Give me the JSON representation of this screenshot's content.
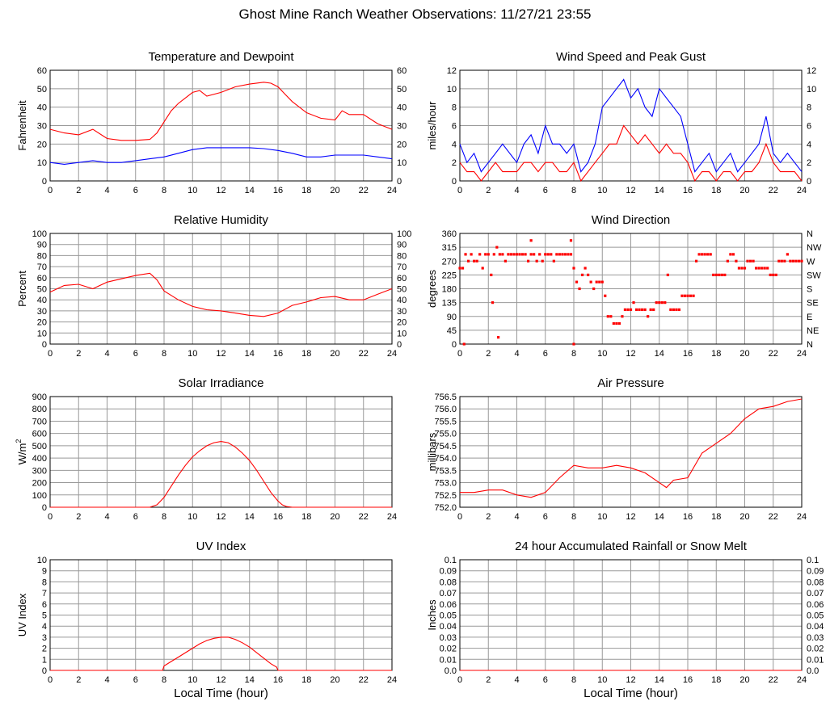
{
  "title": "Ghost Mine Ranch Weather Observations: 11/27/21 23:55",
  "colors": {
    "red": "#ff0000",
    "blue": "#0000ff",
    "grid": "#999999",
    "frame": "#000000"
  },
  "chart_data": [
    {
      "id": "temp",
      "type": "line",
      "title": "Temperature and Dewpoint",
      "ylabel": "Fahrenheit",
      "xlabel": "",
      "xlim": [
        0,
        24
      ],
      "ylim": [
        0,
        60
      ],
      "xticks": [
        "0",
        "2",
        "4",
        "6",
        "8",
        "10",
        "12",
        "14",
        "16",
        "18",
        "20",
        "22",
        "24"
      ],
      "yticks": [
        "0",
        "10",
        "20",
        "30",
        "40",
        "50",
        "60"
      ],
      "right_yticks": [
        "0",
        "10",
        "20",
        "30",
        "40",
        "50",
        "60"
      ],
      "grid": true,
      "series": [
        {
          "color": "red",
          "x": [
            0,
            1,
            2,
            3,
            4,
            5,
            6,
            7,
            7.5,
            8,
            8.5,
            9,
            9.5,
            10,
            10.5,
            11,
            12,
            13,
            14,
            15,
            15.5,
            16,
            16.5,
            17,
            18,
            19,
            20,
            20.5,
            21,
            22,
            23,
            24
          ],
          "y": [
            28,
            26,
            25,
            28,
            23,
            22,
            22,
            22.5,
            26,
            32,
            38,
            42,
            45,
            48,
            49,
            46,
            48,
            51,
            52.5,
            53.5,
            53,
            51,
            47,
            43,
            37,
            34,
            33,
            38,
            36,
            36,
            31,
            28
          ]
        },
        {
          "color": "blue",
          "x": [
            0,
            1,
            2,
            3,
            4,
            5,
            6,
            7,
            8,
            9,
            10,
            11,
            12,
            13,
            14,
            15,
            16,
            17,
            18,
            19,
            20,
            21,
            22,
            23,
            24
          ],
          "y": [
            10,
            9,
            10,
            11,
            10,
            10,
            11,
            12,
            13,
            15,
            17,
            18,
            18,
            18,
            18,
            17.5,
            16.5,
            15,
            13,
            13,
            14,
            14,
            14,
            13,
            12
          ]
        }
      ]
    },
    {
      "id": "wind",
      "type": "line",
      "title": "Wind Speed and Peak Gust",
      "ylabel": "miles/hour",
      "xlabel": "",
      "xlim": [
        0,
        24
      ],
      "ylim": [
        0,
        12
      ],
      "xticks": [
        "0",
        "2",
        "4",
        "6",
        "8",
        "10",
        "12",
        "14",
        "16",
        "18",
        "20",
        "22",
        "24"
      ],
      "yticks": [
        "0",
        "2",
        "4",
        "6",
        "8",
        "10",
        "12"
      ],
      "right_yticks": [
        "0",
        "2",
        "4",
        "6",
        "8",
        "10",
        "12"
      ],
      "grid": true,
      "series": [
        {
          "color": "blue",
          "x": [
            0,
            0.5,
            1,
            1.5,
            2,
            2.5,
            3,
            3.5,
            4,
            4.5,
            5,
            5.5,
            6,
            6.5,
            7,
            7.5,
            8,
            8.5,
            9,
            9.5,
            10,
            10.5,
            11,
            11.5,
            12,
            12.5,
            13,
            13.5,
            14,
            14.5,
            15,
            15.5,
            16,
            16.5,
            17,
            17.5,
            18,
            18.5,
            19,
            19.5,
            20,
            20.5,
            21,
            21.5,
            22,
            22.5,
            23,
            23.5,
            24
          ],
          "y": [
            4,
            2,
            3,
            1,
            2,
            3,
            4,
            3,
            2,
            4,
            5,
            3,
            6,
            4,
            4,
            3,
            4,
            1,
            2,
            4,
            8,
            9,
            10,
            11,
            9,
            10,
            8,
            7,
            10,
            9,
            8,
            7,
            4,
            1,
            2,
            3,
            1,
            2,
            3,
            1,
            2,
            3,
            4,
            7,
            3,
            2,
            3,
            2,
            1
          ]
        },
        {
          "color": "red",
          "x": [
            0,
            0.5,
            1,
            1.5,
            2,
            2.5,
            3,
            3.5,
            4,
            4.5,
            5,
            5.5,
            6,
            6.5,
            7,
            7.5,
            8,
            8.5,
            9,
            9.5,
            10,
            10.5,
            11,
            11.5,
            12,
            12.5,
            13,
            13.5,
            14,
            14.5,
            15,
            15.5,
            16,
            16.5,
            17,
            17.5,
            18,
            18.5,
            19,
            19.5,
            20,
            20.5,
            21,
            21.5,
            22,
            22.5,
            23,
            23.5,
            24
          ],
          "y": [
            2,
            1,
            1,
            0,
            1,
            2,
            1,
            1,
            1,
            2,
            2,
            1,
            2,
            2,
            1,
            1,
            2,
            0,
            1,
            2,
            3,
            4,
            4,
            6,
            5,
            4,
            5,
            4,
            3,
            4,
            3,
            3,
            2,
            0,
            1,
            1,
            0,
            1,
            1,
            0,
            1,
            1,
            2,
            4,
            2,
            1,
            1,
            1,
            0
          ]
        }
      ]
    },
    {
      "id": "rh",
      "type": "line",
      "title": "Relative Humidity",
      "ylabel": "Percent",
      "xlabel": "",
      "xlim": [
        0,
        24
      ],
      "ylim": [
        0,
        100
      ],
      "xticks": [
        "0",
        "2",
        "4",
        "6",
        "8",
        "10",
        "12",
        "14",
        "16",
        "18",
        "20",
        "22",
        "24"
      ],
      "yticks": [
        "0",
        "10",
        "20",
        "30",
        "40",
        "50",
        "60",
        "70",
        "80",
        "90",
        "100"
      ],
      "right_yticks": [
        "0",
        "10",
        "20",
        "30",
        "40",
        "50",
        "60",
        "70",
        "80",
        "90",
        "100"
      ],
      "grid": true,
      "series": [
        {
          "color": "red",
          "x": [
            0,
            1,
            2,
            3,
            4,
            5,
            6,
            7,
            7.5,
            8,
            9,
            10,
            11,
            12,
            13,
            14,
            15,
            16,
            17,
            18,
            19,
            20,
            21,
            22,
            23,
            24
          ],
          "y": [
            47,
            53,
            54,
            50,
            56,
            59,
            62,
            64,
            58,
            48,
            40,
            34,
            31,
            30,
            28,
            26,
            25,
            28,
            35,
            38,
            42,
            43,
            40,
            40,
            45,
            50
          ]
        }
      ]
    },
    {
      "id": "dir",
      "type": "scatter",
      "title": "Wind Direction",
      "ylabel": "degrees",
      "xlabel": "",
      "xlim": [
        0,
        24
      ],
      "ylim": [
        0,
        360
      ],
      "xticks": [
        "0",
        "2",
        "4",
        "6",
        "8",
        "10",
        "12",
        "14",
        "16",
        "18",
        "20",
        "22",
        "24"
      ],
      "yticks": [
        "0",
        "45",
        "90",
        "135",
        "180",
        "225",
        "270",
        "315",
        "360"
      ],
      "right_yticks": [
        "N",
        "NE",
        "E",
        "SE",
        "S",
        "SW",
        "W",
        "NW",
        "N"
      ],
      "grid": true,
      "series": [
        {
          "color": "red",
          "x": [
            0,
            0.2,
            0.4,
            0.6,
            0.8,
            1,
            1.2,
            1.4,
            1.6,
            1.8,
            2,
            2.2,
            2.4,
            2.6,
            2.8,
            3,
            3.2,
            3.4,
            3.6,
            3.8,
            4,
            4.2,
            4.4,
            4.6,
            4.8,
            5,
            5.2,
            5.4,
            5.6,
            5.8,
            6,
            6.2,
            6.4,
            6.6,
            6.8,
            7,
            7.2,
            7.4,
            7.6,
            7.8,
            8,
            8.2,
            8.4,
            8.6,
            8.8,
            9,
            9.2,
            9.4,
            9.6,
            9.8,
            10,
            10.2,
            10.4,
            10.6,
            10.8,
            11,
            11.2,
            11.4,
            11.6,
            11.8,
            12,
            12.2,
            12.4,
            12.6,
            12.8,
            13,
            13.2,
            13.4,
            13.6,
            13.8,
            14,
            14.2,
            14.4,
            14.6,
            14.8,
            15,
            15.2,
            15.4,
            15.6,
            15.8,
            16,
            16.2,
            16.4,
            16.6,
            16.8,
            17,
            17.2,
            17.4,
            17.6,
            17.8,
            18,
            18.2,
            18.4,
            18.6,
            18.8,
            19,
            19.2,
            19.4,
            19.6,
            19.8,
            20,
            20.2,
            20.4,
            20.6,
            20.8,
            21,
            21.2,
            21.4,
            21.6,
            21.8,
            22,
            22.2,
            22.4,
            22.6,
            22.8,
            23,
            23.2,
            23.4,
            23.6,
            23.8,
            24,
            0.3,
            2.7,
            8,
            2.3,
            5,
            7.8
          ],
          "y": [
            247,
            247,
            292,
            270,
            292,
            270,
            270,
            292,
            247,
            292,
            292,
            225,
            292,
            315,
            292,
            292,
            270,
            292,
            292,
            292,
            292,
            292,
            292,
            292,
            270,
            292,
            292,
            270,
            292,
            270,
            292,
            292,
            292,
            270,
            292,
            292,
            292,
            292,
            292,
            292,
            247,
            202,
            180,
            225,
            247,
            225,
            202,
            180,
            202,
            202,
            202,
            157,
            90,
            90,
            67,
            67,
            67,
            90,
            112,
            112,
            112,
            135,
            112,
            112,
            112,
            112,
            90,
            112,
            112,
            135,
            135,
            135,
            135,
            225,
            112,
            112,
            112,
            112,
            157,
            157,
            157,
            157,
            157,
            270,
            292,
            292,
            292,
            292,
            292,
            225,
            225,
            225,
            225,
            225,
            270,
            292,
            292,
            270,
            247,
            247,
            247,
            270,
            270,
            270,
            247,
            247,
            247,
            247,
            247,
            225,
            225,
            225,
            270,
            270,
            270,
            292,
            270,
            270,
            270,
            270,
            270,
            0,
            22,
            0,
            135,
            337,
            337
          ]
        }
      ]
    },
    {
      "id": "solar",
      "type": "line",
      "title": "Solar Irradiance",
      "ylabel": "W/m",
      "ylabel_sup": "2",
      "xlabel": "",
      "xlim": [
        0,
        24
      ],
      "ylim": [
        0,
        900
      ],
      "xticks": [
        "0",
        "2",
        "4",
        "6",
        "8",
        "10",
        "12",
        "14",
        "16",
        "18",
        "20",
        "22",
        "24"
      ],
      "yticks": [
        "0",
        "100",
        "200",
        "300",
        "400",
        "500",
        "600",
        "700",
        "800",
        "900"
      ],
      "right_yticks": [],
      "grid": true,
      "series": [
        {
          "color": "red",
          "x": [
            0,
            7,
            7.5,
            8,
            8.5,
            9,
            9.5,
            10,
            10.5,
            11,
            11.5,
            12,
            12.5,
            13,
            13.5,
            14,
            14.5,
            15,
            15.5,
            16,
            16.3,
            16.6,
            17,
            24
          ],
          "y": [
            0,
            0,
            20,
            80,
            170,
            260,
            340,
            410,
            460,
            500,
            525,
            535,
            525,
            490,
            440,
            380,
            300,
            210,
            120,
            50,
            20,
            5,
            0,
            0
          ]
        }
      ]
    },
    {
      "id": "press",
      "type": "line",
      "title": "Air Pressure",
      "ylabel": "millibars",
      "xlabel": "",
      "xlim": [
        0,
        24
      ],
      "ylim": [
        752.0,
        756.5
      ],
      "xticks": [
        "0",
        "2",
        "4",
        "6",
        "8",
        "10",
        "12",
        "14",
        "16",
        "18",
        "20",
        "22",
        "24"
      ],
      "yticks": [
        "752.0",
        "752.5",
        "753.0",
        "753.5",
        "754.0",
        "754.5",
        "755.0",
        "755.5",
        "756.0",
        "756.5"
      ],
      "right_yticks": [],
      "grid": true,
      "series": [
        {
          "color": "red",
          "x": [
            0,
            1,
            2,
            3,
            4,
            5,
            6,
            7,
            8,
            9,
            10,
            11,
            12,
            13,
            14,
            14.5,
            15,
            16,
            17,
            18,
            19,
            20,
            21,
            22,
            23,
            24
          ],
          "y": [
            752.6,
            752.6,
            752.7,
            752.7,
            752.5,
            752.4,
            752.6,
            753.2,
            753.7,
            753.6,
            753.6,
            753.7,
            753.6,
            753.4,
            753.0,
            752.8,
            753.1,
            753.2,
            754.2,
            754.6,
            755.0,
            755.6,
            756.0,
            756.1,
            756.3,
            756.4
          ]
        }
      ]
    },
    {
      "id": "uv",
      "type": "line",
      "title": "UV Index",
      "ylabel": "UV Index",
      "xlabel": "Local Time (hour)",
      "xlim": [
        0,
        24
      ],
      "ylim": [
        0,
        10
      ],
      "xticks": [
        "0",
        "2",
        "4",
        "6",
        "8",
        "10",
        "12",
        "14",
        "16",
        "18",
        "20",
        "22",
        "24"
      ],
      "yticks": [
        "0",
        "1",
        "2",
        "3",
        "4",
        "5",
        "6",
        "7",
        "8",
        "9",
        "10"
      ],
      "right_yticks": [],
      "grid": true,
      "series": [
        {
          "color": "red",
          "x": [
            0,
            7.9,
            8,
            8.5,
            9,
            9.5,
            10,
            10.5,
            11,
            11.5,
            12,
            12.5,
            13,
            13.5,
            14,
            14.5,
            15,
            15.5,
            15.9,
            16,
            24
          ],
          "y": [
            0,
            0,
            0.4,
            0.8,
            1.2,
            1.6,
            2.0,
            2.4,
            2.7,
            2.9,
            3.0,
            3.0,
            2.8,
            2.5,
            2.1,
            1.6,
            1.1,
            0.6,
            0.3,
            0,
            0
          ]
        }
      ]
    },
    {
      "id": "rain",
      "type": "line",
      "title": "24 hour Accumulated Rainfall or Snow Melt",
      "ylabel": "Inches",
      "xlabel": "Local Time (hour)",
      "xlim": [
        0,
        24
      ],
      "ylim": [
        0,
        0.1
      ],
      "xticks": [
        "0",
        "2",
        "4",
        "6",
        "8",
        "10",
        "12",
        "14",
        "16",
        "18",
        "20",
        "22",
        "24"
      ],
      "yticks": [
        "0.0",
        "0.01",
        "0.02",
        "0.03",
        "0.04",
        "0.05",
        "0.06",
        "0.07",
        "0.08",
        "0.09",
        "0.1"
      ],
      "right_yticks": [
        "0.0",
        "0.01",
        "0.02",
        "0.03",
        "0.04",
        "0.05",
        "0.06",
        "0.07",
        "0.08",
        "0.09",
        "0.1"
      ],
      "grid": true,
      "series": [
        {
          "color": "red",
          "x": [
            0,
            24
          ],
          "y": [
            0,
            0
          ]
        }
      ]
    }
  ]
}
